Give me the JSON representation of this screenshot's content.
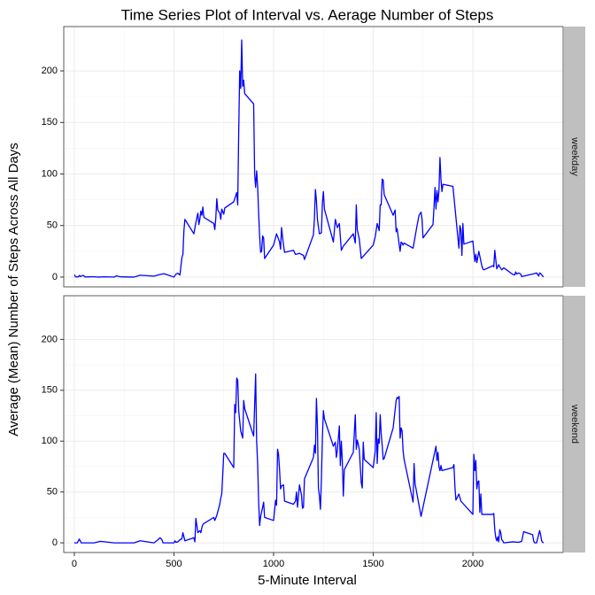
{
  "chart_data": {
    "type": "line",
    "title": "Time Series Plot of Interval vs. Aerage Number of Steps",
    "xlabel": "5-Minute Interval",
    "ylabel": "Average (Mean) Number of Steps Across All Days",
    "color": "#0000ff",
    "grid": true,
    "xlim": [
      -53,
      2453
    ],
    "xticks": [
      0,
      500,
      1000,
      1500,
      2000
    ],
    "ylim": [
      -9.5,
      243
    ],
    "yticks": [
      0,
      50,
      100,
      150,
      200
    ],
    "panels": [
      {
        "strip": "weekday",
        "x": [
          0,
          5,
          10,
          15,
          20,
          25,
          30,
          35,
          45,
          55,
          100,
          110,
          120,
          150,
          200,
          210,
          235,
          300,
          330,
          400,
          430,
          450,
          500,
          510,
          520,
          530,
          540,
          545,
          550,
          555,
          600,
          610,
          620,
          625,
          630,
          635,
          640,
          645,
          650,
          700,
          705,
          710,
          715,
          720,
          730,
          735,
          740,
          750,
          755,
          800,
          815,
          820,
          825,
          830,
          835,
          840,
          845,
          850,
          855,
          900,
          905,
          910,
          915,
          920,
          925,
          930,
          935,
          940,
          945,
          950,
          955,
          1000,
          1015,
          1030,
          1035,
          1040,
          1045,
          1050,
          1055,
          1100,
          1110,
          1130,
          1150,
          1155,
          1200,
          1205,
          1210,
          1215,
          1220,
          1230,
          1240,
          1245,
          1250,
          1255,
          1300,
          1310,
          1320,
          1330,
          1340,
          1350,
          1400,
          1410,
          1415,
          1420,
          1430,
          1440,
          1500,
          1510,
          1520,
          1530,
          1535,
          1540,
          1545,
          1550,
          1555,
          1600,
          1610,
          1615,
          1620,
          1630,
          1635,
          1640,
          1645,
          1650,
          1655,
          1700,
          1710,
          1720,
          1730,
          1740,
          1745,
          1750,
          1800,
          1805,
          1810,
          1815,
          1820,
          1825,
          1830,
          1835,
          1840,
          1845,
          1850,
          1900,
          1930,
          1935,
          1940,
          1945,
          1950,
          1955,
          2000,
          2010,
          2015,
          2020,
          2030,
          2045,
          2050,
          2055,
          2100,
          2105,
          2110,
          2120,
          2130,
          2135,
          2145,
          2155,
          2200,
          2210,
          2215,
          2220,
          2230,
          2240,
          2245,
          2300,
          2320,
          2330,
          2335,
          2340,
          2350,
          2355
        ],
        "values": [
          2.3,
          0.5,
          0.2,
          0.2,
          0.1,
          1.6,
          0.6,
          1,
          1.6,
          0.1,
          0.4,
          0.2,
          0,
          0.3,
          0,
          1.1,
          0.2,
          0,
          1.8,
          0.9,
          2.5,
          3.3,
          0,
          2.9,
          3.7,
          2,
          19,
          22,
          45,
          56,
          42,
          53,
          62,
          51,
          56,
          64,
          60,
          68,
          58,
          52,
          46,
          57,
          76,
          65,
          62,
          56,
          66,
          61,
          67,
          73,
          82,
          70,
          140,
          200,
          183,
          230,
          185,
          191,
          178,
          168,
          100,
          87,
          103,
          88,
          62,
          40,
          24,
          25,
          40,
          38,
          18,
          31,
          42,
          34,
          27,
          48,
          39,
          31,
          24,
          26,
          22,
          23,
          21,
          17,
          41,
          57,
          85,
          74,
          56,
          42,
          43,
          72,
          83,
          66,
          34,
          56,
          48,
          52,
          26,
          30,
          42,
          33,
          70,
          46,
          37,
          18,
          31,
          39,
          52,
          45,
          70,
          70,
          95,
          94,
          80,
          60,
          65,
          44,
          47,
          32,
          25,
          34,
          33,
          31,
          33,
          28,
          39,
          50,
          60,
          63,
          56,
          38,
          51,
          68,
          87,
          66,
          84,
          73,
          84,
          116,
          95,
          83,
          90,
          88,
          28,
          50,
          46,
          21,
          52,
          32,
          35,
          15,
          22,
          14,
          25,
          11,
          8,
          7,
          11,
          10,
          26,
          8,
          12,
          10,
          7,
          9,
          2.6,
          2,
          5,
          3,
          4,
          3,
          0.5,
          3,
          4,
          1,
          4,
          3.5,
          1,
          0.2
        ]
      },
      {
        "strip": "weekend",
        "x": [
          0,
          10,
          15,
          25,
          35,
          100,
          130,
          200,
          255,
          300,
          330,
          400,
          420,
          430,
          440,
          445,
          500,
          505,
          510,
          520,
          530,
          540,
          545,
          550,
          555,
          600,
          605,
          610,
          615,
          620,
          625,
          630,
          635,
          640,
          645,
          650,
          700,
          705,
          715,
          730,
          735,
          740,
          745,
          750,
          755,
          800,
          805,
          810,
          815,
          820,
          825,
          830,
          835,
          845,
          850,
          855,
          900,
          910,
          915,
          920,
          925,
          930,
          935,
          945,
          950,
          955,
          1000,
          1010,
          1015,
          1020,
          1025,
          1030,
          1035,
          1040,
          1050,
          1055,
          1100,
          1110,
          1115,
          1120,
          1130,
          1140,
          1145,
          1150,
          1155,
          1200,
          1205,
          1210,
          1215,
          1220,
          1225,
          1230,
          1235,
          1240,
          1245,
          1250,
          1255,
          1300,
          1310,
          1315,
          1320,
          1330,
          1335,
          1340,
          1345,
          1350,
          1355,
          1400,
          1410,
          1415,
          1420,
          1425,
          1430,
          1440,
          1445,
          1450,
          1455,
          1500,
          1510,
          1515,
          1520,
          1525,
          1530,
          1535,
          1540,
          1545,
          1550,
          1555,
          1600,
          1615,
          1620,
          1625,
          1630,
          1635,
          1640,
          1645,
          1650,
          1655,
          1700,
          1705,
          1710,
          1715,
          1740,
          1815,
          1820,
          1825,
          1830,
          1835,
          1840,
          1845,
          1900,
          1905,
          1910,
          1915,
          1930,
          1940,
          2000,
          2005,
          2010,
          2015,
          2020,
          2025,
          2030,
          2035,
          2040,
          2045,
          2100,
          2105,
          2110,
          2115,
          2120,
          2125,
          2130,
          2135,
          2140,
          2145,
          2150,
          2155,
          2200,
          2230,
          2245,
          2255,
          2300,
          2305,
          2310,
          2320,
          2335,
          2340,
          2345,
          2350,
          2355
        ],
        "values": [
          0,
          0,
          0,
          3.7,
          0,
          0,
          1.5,
          0,
          0,
          0,
          2,
          0,
          3,
          5,
          3,
          0,
          0,
          2,
          0.5,
          1,
          3,
          4,
          10,
          6,
          2,
          5,
          1,
          24,
          17,
          10,
          11,
          12,
          10,
          15,
          18,
          19,
          25,
          22,
          27,
          38,
          44,
          48,
          68,
          88,
          88,
          74,
          136,
          128,
          162,
          160,
          130,
          120,
          110,
          103,
          140,
          132,
          105,
          166,
          100,
          78,
          41,
          17,
          26,
          35,
          40,
          25,
          22,
          42,
          37,
          92,
          87,
          72,
          53,
          56,
          57,
          41,
          38,
          41,
          50,
          35,
          57,
          47,
          34,
          35,
          63,
          84,
          96,
          88,
          142,
          115,
          54,
          46,
          33,
          62,
          104,
          130,
          122,
          95,
          99,
          84,
          91,
          115,
          76,
          100,
          80,
          46,
          72,
          89,
          126,
          92,
          101,
          97,
          92,
          59,
          54,
          99,
          82,
          74,
          90,
          128,
          78,
          102,
          98,
          126,
          107,
          96,
          82,
          83,
          113,
          140,
          143,
          142,
          144,
          103,
          113,
          110,
          90,
          82,
          40,
          78,
          58,
          53,
          26,
          95,
          81,
          89,
          75,
          71,
          76,
          71,
          74,
          77,
          55,
          42,
          48,
          41,
          28,
          87,
          71,
          81,
          53,
          60,
          61,
          30,
          48,
          28,
          28,
          29,
          13,
          5,
          2,
          6,
          1,
          13,
          10,
          3,
          2,
          0,
          1,
          0.5,
          1.5,
          11,
          8,
          2,
          0,
          0,
          12,
          8,
          2,
          0.5,
          0
        ]
      }
    ]
  }
}
